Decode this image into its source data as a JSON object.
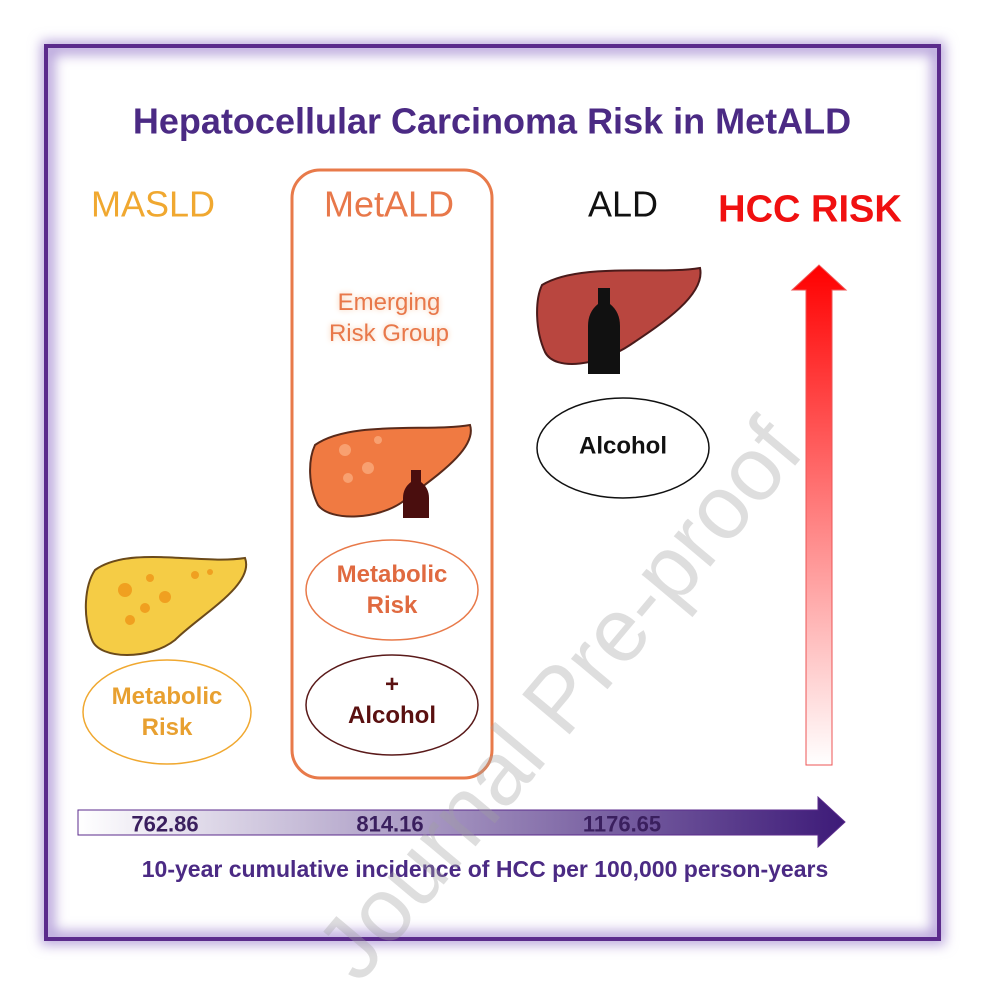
{
  "title": "Hepatocellular Carcinoma Risk in MetALD",
  "groups": [
    {
      "name": "MASLD",
      "ellipses": [
        "Metabolic Risk"
      ]
    },
    {
      "name": "MetALD",
      "note": "Emerging Risk Group",
      "ellipses": [
        "Metabolic Risk",
        "+ Alcohol"
      ]
    },
    {
      "name": "ALD",
      "ellipses": [
        "Alcohol"
      ]
    }
  ],
  "risk_label": "HCC RISK",
  "incidence": {
    "values": [
      762.86,
      814.16,
      1176.65
    ],
    "label": "10-year cumulative incidence of HCC per 100,000 person-years"
  },
  "watermark": "Journal Pre-proof"
}
